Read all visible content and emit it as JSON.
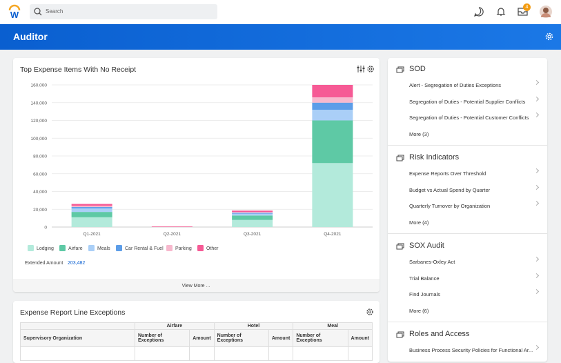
{
  "header": {
    "search_placeholder": "Search",
    "notification_count": 4
  },
  "page_title": "Auditor",
  "chart_data": {
    "type": "bar",
    "stacked": true,
    "title": "Top Expense Items With No Receipt",
    "categories": [
      "Q1-2021",
      "Q2-2021",
      "Q3-2021",
      "Q4-2021"
    ],
    "series": [
      {
        "name": "Lodging",
        "color": "#b3eadb",
        "values": [
          11000,
          0,
          8000,
          72000
        ]
      },
      {
        "name": "Airfare",
        "color": "#5ec9a5",
        "values": [
          6000,
          0,
          5000,
          48000
        ]
      },
      {
        "name": "Meals",
        "color": "#aacff7",
        "values": [
          4000,
          0,
          2000,
          12000
        ]
      },
      {
        "name": "Car Rental & Fuel",
        "color": "#5c9de8",
        "values": [
          1500,
          0,
          1000,
          8000
        ]
      },
      {
        "name": "Parking",
        "color": "#f7b8cd",
        "values": [
          1500,
          300,
          1000,
          6000
        ]
      },
      {
        "name": "Other",
        "color": "#f65a95",
        "values": [
          2000,
          500,
          1500,
          14000
        ]
      }
    ],
    "ylim": [
      0,
      160000
    ],
    "yticks": [
      0,
      {
        "value": 20000,
        "label": "20,000"
      },
      {
        "value": 40000,
        "label": "40,000"
      },
      {
        "value": 60000,
        "label": "60,000"
      },
      {
        "value": 80000,
        "label": "80,000"
      },
      {
        "value": 100000,
        "label": "100,000"
      },
      {
        "value": 120000,
        "label": "120,000"
      },
      {
        "value": 140000,
        "label": "140,000"
      },
      {
        "value": 160000,
        "label": "160,000"
      }
    ],
    "grid": true,
    "legend": "bottom",
    "summary_label": "Extended Amount",
    "summary_value": "203,482",
    "footer_link": "View More ..."
  },
  "sidebar": [
    {
      "title": "SOD",
      "items": [
        "Alert - Segregation of Duties Exceptions",
        "Segregation of Duties - Potential Supplier Conflicts",
        "Segregation of Duties - Potential Customer Conflicts",
        "More (3)"
      ]
    },
    {
      "title": "Risk Indicators",
      "items": [
        "Expense Reports Over Threshold",
        "Budget vs Actual Spend by Quarter",
        "Quarterly Turnover by Organization",
        "More (4)"
      ]
    },
    {
      "title": "SOX Audit",
      "items": [
        "Sarbanes-Oxley Act",
        "Trial Balance",
        "Find Journals",
        "More (6)"
      ]
    },
    {
      "title": "Roles and Access",
      "items": [
        "Business Process Security Policies for Functional Ar..."
      ]
    }
  ],
  "table": {
    "title": "Expense Report Line Exceptions",
    "groups": [
      "Airfare",
      "Hotel",
      "Meal"
    ],
    "columns": [
      "Supervisory Organization",
      "Number of Exceptions",
      "Amount",
      "Number of Exceptions",
      "Amount",
      "Number of Exceptions",
      "Amount"
    ]
  }
}
